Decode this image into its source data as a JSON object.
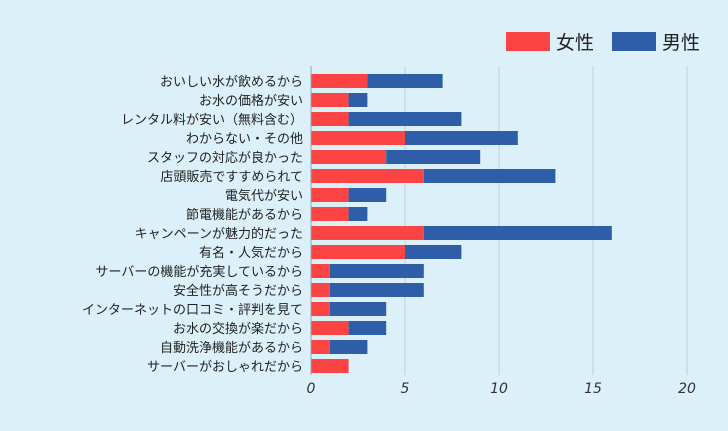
{
  "chart_data": {
    "type": "bar",
    "orientation": "horizontal",
    "stacked": true,
    "categories": [
      "おいしい水が飲めるから",
      "お水の価格が安い",
      "レンタル料が安い（無料含む）",
      "わからない・その他",
      "スタッフの対応が良かった",
      "店頭販売ですすめられて",
      "電気代が安い",
      "節電機能があるから",
      "キャンペーンが魅力的だった",
      "有名・人気だから",
      "サーバーの機能が充実しているから",
      "安全性が高そうだから",
      "インターネットの口コミ・評判を見て",
      "お水の交換が楽だから",
      "自動洗浄機能があるから",
      "サーバーがおしゃれだから"
    ],
    "series": [
      {
        "name": "女性",
        "color": "#fc4444",
        "values": [
          3,
          2,
          2,
          5,
          4,
          6,
          2,
          2,
          6,
          5,
          1,
          1,
          1,
          2,
          1,
          2
        ]
      },
      {
        "name": "男性",
        "color": "#2e5ea8",
        "values": [
          4,
          1,
          6,
          6,
          5,
          7,
          2,
          1,
          10,
          3,
          5,
          5,
          3,
          2,
          2,
          0
        ]
      }
    ],
    "xlim": [
      0,
      20
    ],
    "xticks": [
      "0",
      "5",
      "10",
      "15",
      "20"
    ],
    "grid": true,
    "legend_position": "top-right"
  }
}
